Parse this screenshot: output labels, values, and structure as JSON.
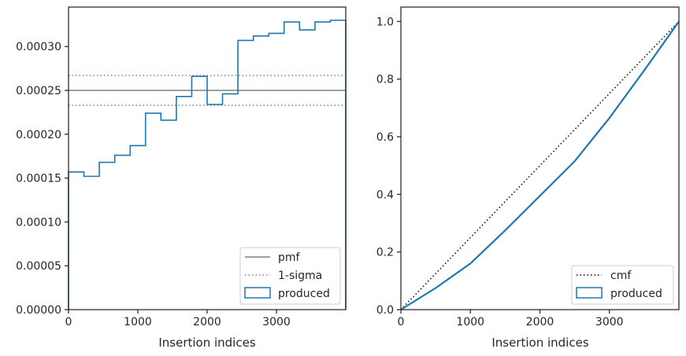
{
  "colors": {
    "produced": "#1f77b4",
    "reference": "#808080",
    "cmf": "#000000",
    "axis": "#262626"
  },
  "chart_data": [
    {
      "type": "histogram",
      "xlabel": "Insertion indices",
      "ylabel": "",
      "xlim": [
        0,
        4000
      ],
      "ylim": [
        0,
        0.000345
      ],
      "xticks": [
        0,
        1000,
        2000,
        3000
      ],
      "xtick_labels": [
        "0",
        "1000",
        "2000",
        "3000"
      ],
      "yticks": [
        0,
        5e-05,
        0.0001,
        0.00015,
        0.0002,
        0.00025,
        0.0003
      ],
      "ytick_labels": [
        "0.00000",
        "0.00005",
        "0.00010",
        "0.00015",
        "0.00020",
        "0.00025",
        "0.00030"
      ],
      "grid": false,
      "legend_position": "lower-right",
      "bin_edges": [
        0,
        222,
        444,
        667,
        889,
        1111,
        1333,
        1556,
        1778,
        2000,
        2222,
        2444,
        2667,
        2889,
        3111,
        3333,
        3556,
        3778,
        4000
      ],
      "series": [
        {
          "name": "produced",
          "style": "step",
          "values": [
            0.000157,
            0.000152,
            0.000168,
            0.000176,
            0.000187,
            0.000224,
            0.000216,
            0.000243,
            0.000266,
            0.000234,
            0.000246,
            0.000307,
            0.000312,
            0.000315,
            0.000328,
            0.000319,
            0.000328,
            0.00033
          ]
        }
      ],
      "reference_lines": [
        {
          "name": "pmf",
          "style": "solid",
          "y": 0.00025
        },
        {
          "name": "1-sigma",
          "style": "dotted",
          "y": [
            0.000233,
            0.000267
          ]
        }
      ],
      "legend": [
        "pmf",
        "1-sigma",
        "produced"
      ]
    },
    {
      "type": "line",
      "xlabel": "Insertion indices",
      "ylabel": "",
      "xlim": [
        0,
        4000
      ],
      "ylim": [
        0,
        1.05
      ],
      "xticks": [
        0,
        1000,
        2000,
        3000
      ],
      "xtick_labels": [
        "0",
        "1000",
        "2000",
        "3000"
      ],
      "yticks": [
        0,
        0.2,
        0.4,
        0.6,
        0.8,
        1.0
      ],
      "ytick_labels": [
        "0.0",
        "0.2",
        "0.4",
        "0.6",
        "0.8",
        "1.0"
      ],
      "grid": false,
      "legend_position": "lower-right",
      "series": [
        {
          "name": "cmf",
          "style": "dotted",
          "x": [
            0,
            4000
          ],
          "y": [
            0,
            1.0
          ]
        },
        {
          "name": "produced",
          "style": "step",
          "x": [
            0,
            500,
            1000,
            1500,
            2000,
            2500,
            3000,
            3500,
            4000
          ],
          "y": [
            0,
            0.075,
            0.16,
            0.275,
            0.395,
            0.515,
            0.665,
            0.83,
            1.0
          ]
        }
      ],
      "legend": [
        "cmf",
        "produced"
      ]
    }
  ]
}
